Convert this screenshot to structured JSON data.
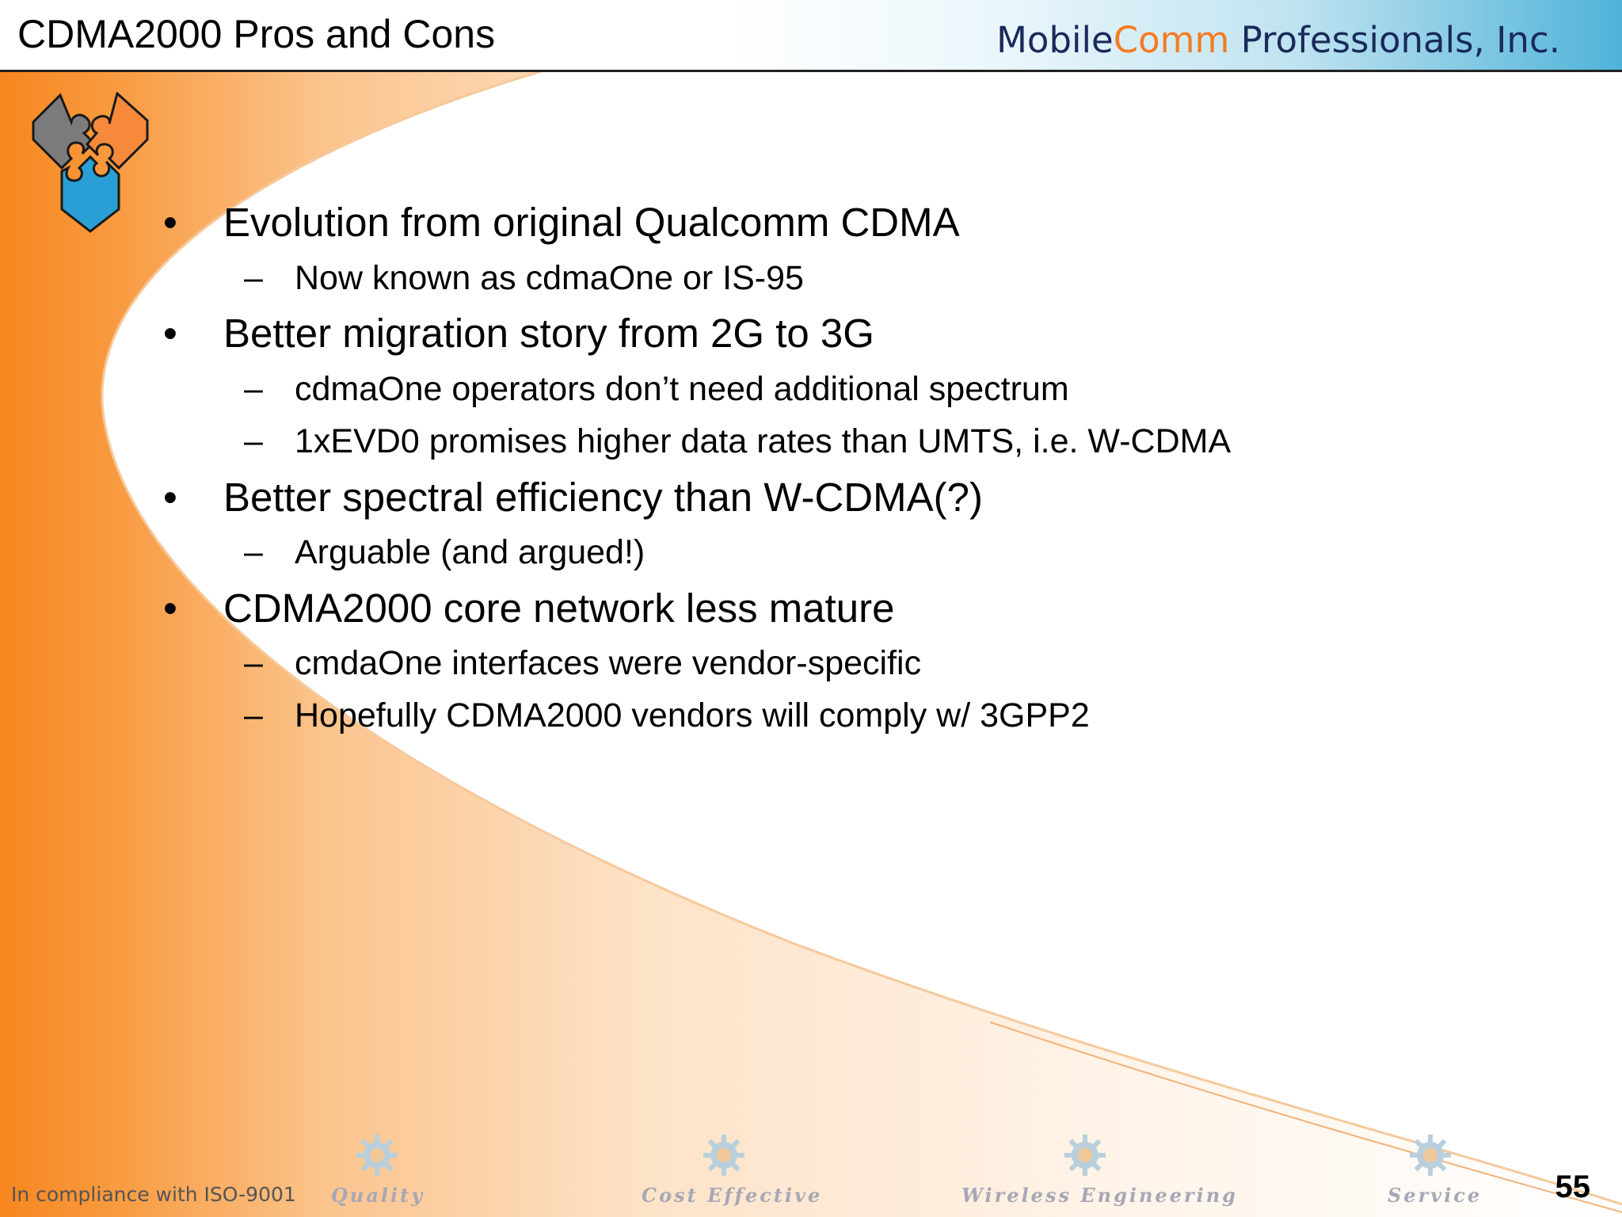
{
  "header": {
    "title": "CDMA2000 Pros and Cons",
    "brand_prefix": "Mobile",
    "brand_accent": "Comm",
    "brand_suffix": " Professionals, Inc."
  },
  "logo": {
    "icon": "puzzle-heart-icon"
  },
  "bullets": [
    {
      "marker": "•",
      "text": "Evolution from original Qualcomm CDMA"
    },
    {
      "marker": "–",
      "text": "Now known as cdmaOne or IS-95"
    },
    {
      "marker": "•",
      "text": "Better migration story from 2G to 3G"
    },
    {
      "marker": "–",
      "text": "cdmaOne operators don’t need additional spectrum"
    },
    {
      "marker": "–",
      "text": "1xEVD0 promises higher data rates than UMTS, i.e. W-CDMA"
    },
    {
      "marker": "•",
      "text": "Better spectral efficiency than W-CDMA(?)"
    },
    {
      "marker": "–",
      "text": "Arguable (and argued!)"
    },
    {
      "marker": "•",
      "text": "CDMA2000 core network less mature"
    },
    {
      "marker": "–",
      "text": "cmdaOne interfaces were vendor-specific"
    },
    {
      "marker": "–",
      "text": "Hopefully CDMA2000 vendors will comply w/ 3GPP2"
    }
  ],
  "footer": {
    "compliance": "In compliance with ISO-9001",
    "tags": [
      "Quality",
      "Cost Effective",
      "Wireless Engineering",
      "Service"
    ],
    "gear_icon": "gear-icon",
    "page_number": "55"
  },
  "colors": {
    "orange": "#f47b20",
    "blue": "#2a9fd6",
    "gray": "#7d7d7d"
  }
}
